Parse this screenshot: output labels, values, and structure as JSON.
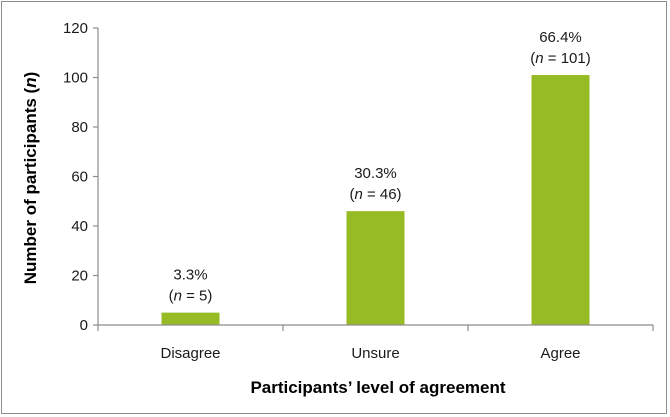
{
  "chart_data": {
    "type": "bar",
    "title": "",
    "categories": [
      "Disagree",
      "Unsure",
      "Agree"
    ],
    "values": [
      5,
      46,
      101
    ],
    "data_labels": [
      {
        "percent": "3.3%",
        "n_prefix": "n",
        "n_suffix": " = 5"
      },
      {
        "percent": "30.3%",
        "n_prefix": "n",
        "n_suffix": " = 46"
      },
      {
        "percent": "66.4%",
        "n_prefix": "n",
        "n_suffix": " = 101"
      }
    ],
    "xlabel": "Participants’ level of agreement",
    "ylabel_main": "Number of participants (",
    "ylabel_italic": "n",
    "ylabel_end": ")",
    "ylim": [
      0,
      120
    ],
    "yticks": [
      0,
      20,
      40,
      60,
      80,
      100,
      120
    ],
    "grid": false,
    "legend": "none",
    "bar_color": "#96bb25",
    "axis_color": "#8c8c8c"
  }
}
